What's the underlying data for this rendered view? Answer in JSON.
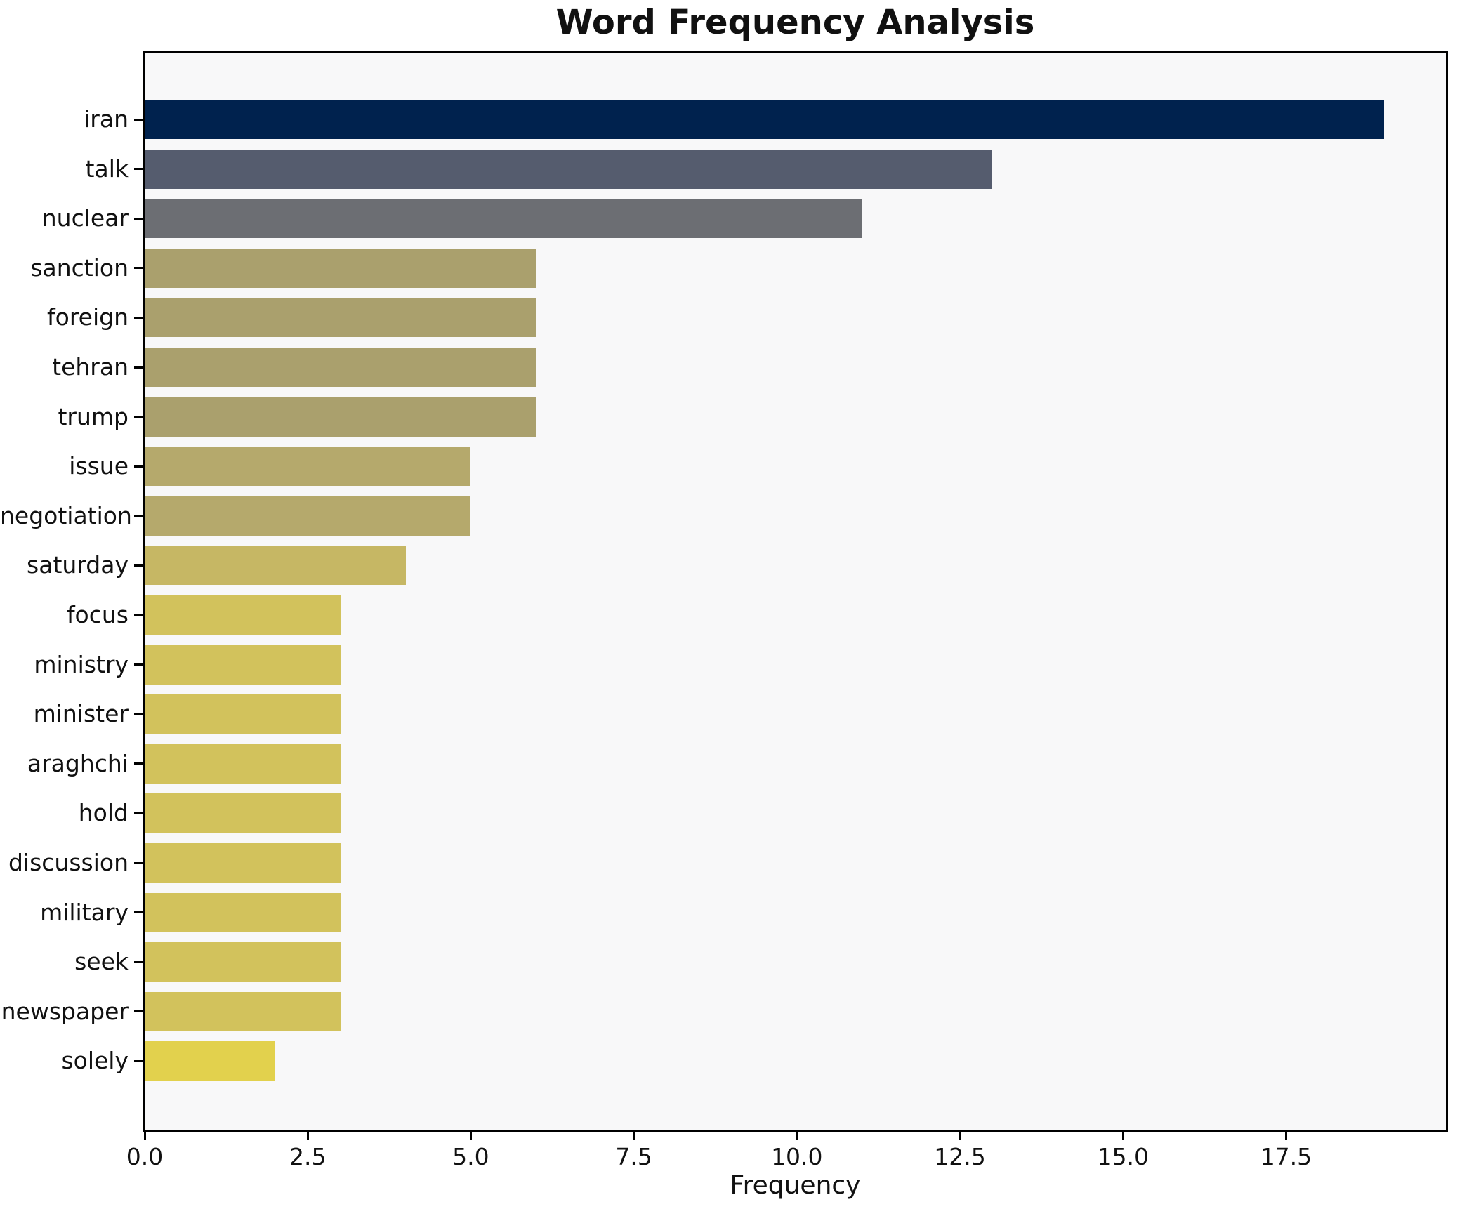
{
  "figure": {
    "background": "#ffffff",
    "plot_background": "#f8f8f9",
    "spine_color": "#000000",
    "text_color": "#111111"
  },
  "chart_data": {
    "type": "bar",
    "orientation": "horizontal",
    "title": "Word Frequency Analysis",
    "xlabel": "Frequency",
    "ylabel": "",
    "categories": [
      "iran",
      "talk",
      "nuclear",
      "sanction",
      "foreign",
      "tehran",
      "trump",
      "issue",
      "negotiation",
      "saturday",
      "focus",
      "ministry",
      "minister",
      "araghchi",
      "hold",
      "discussion",
      "military",
      "seek",
      "newspaper",
      "solely"
    ],
    "values": [
      19,
      13,
      11,
      6,
      6,
      6,
      6,
      5,
      5,
      4,
      3,
      3,
      3,
      3,
      3,
      3,
      3,
      3,
      3,
      2
    ],
    "bar_colors": [
      "#00224e",
      "#555c6e",
      "#6c6e73",
      "#aaa06d",
      "#aaa06d",
      "#aaa06d",
      "#aaa06d",
      "#b5a96c",
      "#b5a96c",
      "#c6b764",
      "#d2c25c",
      "#d2c25c",
      "#d2c25c",
      "#d2c25c",
      "#d2c25c",
      "#d2c25c",
      "#d2c25c",
      "#d2c25c",
      "#d2c25c",
      "#e2d14d"
    ],
    "xlim": [
      0,
      19.95
    ],
    "xticks": [
      0,
      2.5,
      5,
      7.5,
      10,
      12.5,
      15,
      17.5
    ],
    "xtick_labels": [
      "0.0",
      "2.5",
      "5.0",
      "7.5",
      "10.0",
      "12.5",
      "15.0",
      "17.5"
    ],
    "grid": false,
    "legend": null,
    "colormap": "cividis reversed by frequency"
  }
}
